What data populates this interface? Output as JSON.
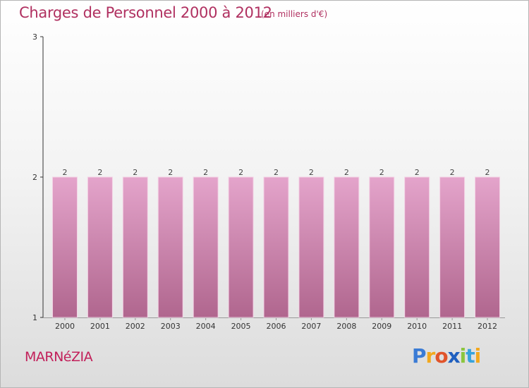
{
  "header": {
    "title": "Charges de Personnel 2000 à 2012",
    "subtitle": "(en milliers d'€)"
  },
  "footer": {
    "commune": "MARNéZIA",
    "logo": [
      "P",
      "r",
      "o",
      "x",
      "i",
      "t",
      "i"
    ]
  },
  "colors": {
    "accent": "#b03060",
    "bar_top": "#e4a4cb",
    "bar_bottom": "#b0668e"
  },
  "chart_data": {
    "type": "bar",
    "title": "Charges de Personnel 2000 à 2012",
    "subtitle": "(en milliers d'€)",
    "categories": [
      "2000",
      "2001",
      "2002",
      "2003",
      "2004",
      "2005",
      "2006",
      "2007",
      "2008",
      "2009",
      "2010",
      "2011",
      "2012"
    ],
    "values": [
      2,
      2,
      2,
      2,
      2,
      2,
      2,
      2,
      2,
      2,
      2,
      2,
      2
    ],
    "data_labels": [
      "2",
      "2",
      "2",
      "2",
      "2",
      "2",
      "2",
      "2",
      "2",
      "2",
      "2",
      "2",
      "2"
    ],
    "y_ticks": [
      "1",
      "2",
      "3"
    ],
    "ylim": [
      1,
      3
    ],
    "xlabel": "",
    "ylabel": "",
    "grid": false,
    "legend": "none"
  }
}
